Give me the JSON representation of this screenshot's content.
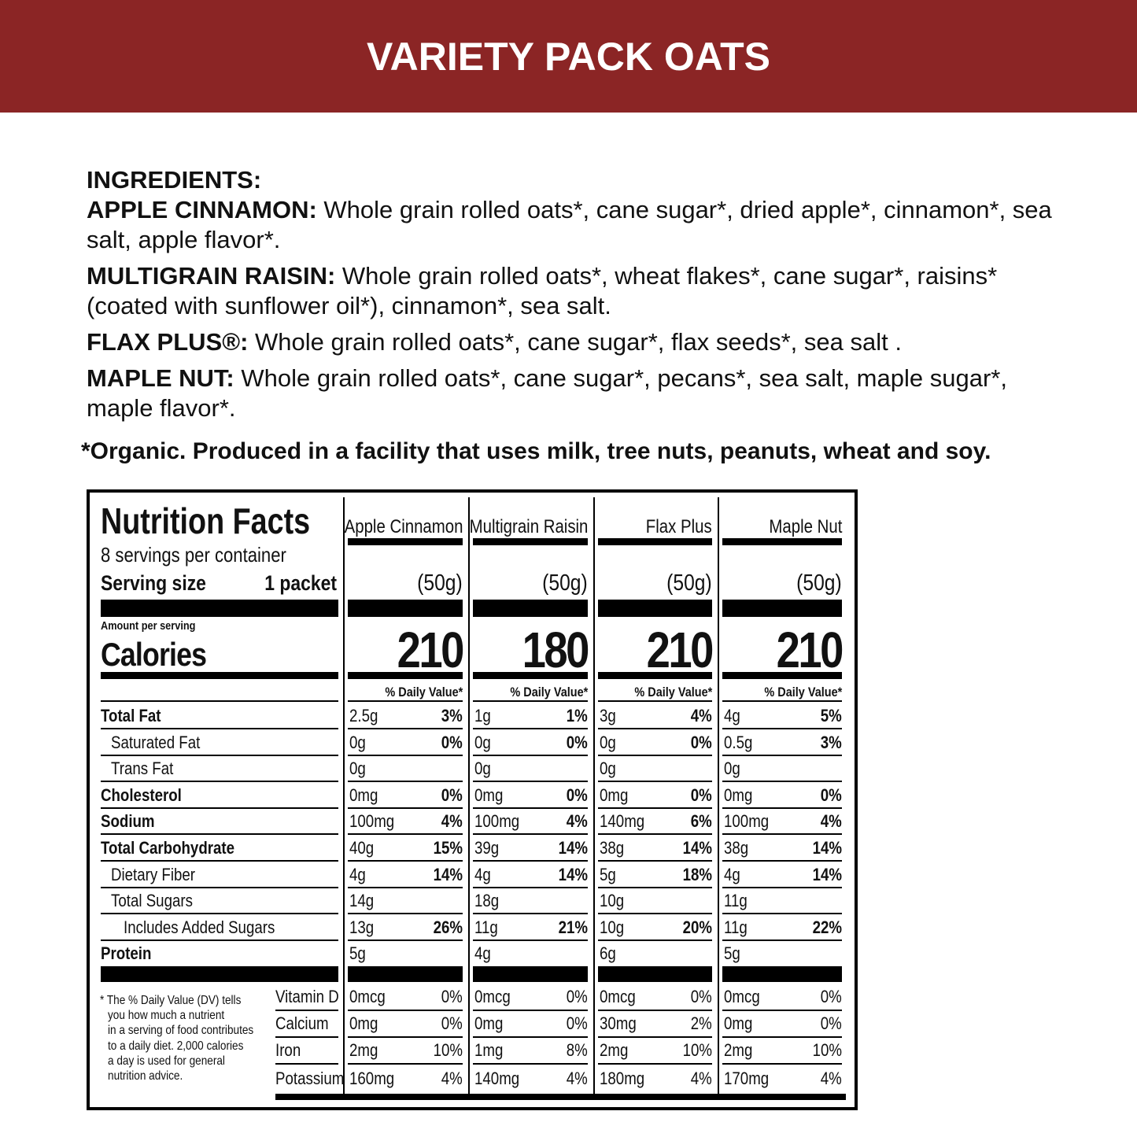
{
  "header": {
    "title": "VARIETY PACK OATS"
  },
  "ingredients": {
    "heading": "INGREDIENTS:",
    "items": [
      {
        "name": "APPLE CINNAMON:",
        "text": "Whole grain rolled oats*, cane sugar*, dried apple*, cinnamon*, sea salt, apple flavor*."
      },
      {
        "name": "MULTIGRAIN RAISIN:",
        "text": "Whole grain rolled oats*, wheat flakes*, cane sugar*, raisins* (coated with sunflower oil*), cinnamon*, sea salt."
      },
      {
        "name": "FLAX PLUS®:",
        "text": "Whole grain rolled oats*, cane sugar*, flax seeds*, sea salt ."
      },
      {
        "name": "MAPLE NUT:",
        "text": "Whole grain rolled oats*, cane sugar*, pecans*, sea salt, maple sugar*, maple flavor*."
      }
    ],
    "note": "*Organic. Produced in a facility that uses milk, tree nuts, peanuts, wheat and soy."
  },
  "nutrition": {
    "title": "Nutrition Facts",
    "servings": "8 servings per container",
    "serving_size_label": "Serving size",
    "serving_size_value": "1 packet",
    "amount_per_serving": "Amount per serving",
    "calories_label": "Calories",
    "nutrients": [
      "Total Fat",
      "Saturated Fat",
      "Trans Fat",
      "Cholesterol",
      "Sodium",
      "Total Carbohydrate",
      "Dietary Fiber",
      "Total Sugars",
      "Includes Added Sugars",
      "Protein"
    ],
    "vitamins": [
      "Vitamin D",
      "Calcium",
      "Iron",
      "Potassium"
    ],
    "footnote": [
      "* The % Daily Value (DV) tells",
      "you how much a nutrient",
      "in a serving of food contributes",
      "to a daily diet. 2,000 calories",
      "a day is used for general",
      "nutrition advice."
    ],
    "products": [
      {
        "name": "Apple Cinnamon",
        "serving": "(50g)",
        "calories": 210,
        "dv_heading": "% Daily Value*",
        "nutrients": [
          [
            "2.5g",
            "3%"
          ],
          [
            "0g",
            "0%"
          ],
          [
            "0g"
          ],
          [
            "0mg",
            "0%"
          ],
          [
            "100mg",
            "4%"
          ],
          [
            "40g",
            "15%"
          ],
          [
            "4g",
            "14%"
          ],
          [
            "14g"
          ],
          [
            "13g",
            "26%"
          ],
          [
            "5g"
          ]
        ],
        "vitamins": [
          [
            "0mcg",
            "0%"
          ],
          [
            "0mg",
            "0%"
          ],
          [
            "2mg",
            "10%"
          ],
          [
            "160mg",
            "4%"
          ]
        ]
      },
      {
        "name": "Multigrain Raisin",
        "serving": "(50g)",
        "calories": 180,
        "dv_heading": "% Daily Value*",
        "nutrients": [
          [
            "1g",
            "1%"
          ],
          [
            "0g",
            "0%"
          ],
          [
            "0g"
          ],
          [
            "0mg",
            "0%"
          ],
          [
            "100mg",
            "4%"
          ],
          [
            "39g",
            "14%"
          ],
          [
            "4g",
            "14%"
          ],
          [
            "18g"
          ],
          [
            "11g",
            "21%"
          ],
          [
            "4g"
          ]
        ],
        "vitamins": [
          [
            "0mcg",
            "0%"
          ],
          [
            "0mg",
            "0%"
          ],
          [
            "1mg",
            "8%"
          ],
          [
            "140mg",
            "4%"
          ]
        ]
      },
      {
        "name": "Flax Plus",
        "serving": "(50g)",
        "calories": 210,
        "dv_heading": "% Daily Value*",
        "nutrients": [
          [
            "3g",
            "4%"
          ],
          [
            "0g",
            "0%"
          ],
          [
            "0g"
          ],
          [
            "0mg",
            "0%"
          ],
          [
            "140mg",
            "6%"
          ],
          [
            "38g",
            "14%"
          ],
          [
            "5g",
            "18%"
          ],
          [
            "10g"
          ],
          [
            "10g",
            "20%"
          ],
          [
            "6g"
          ]
        ],
        "vitamins": [
          [
            "0mcg",
            "0%"
          ],
          [
            "30mg",
            "2%"
          ],
          [
            "2mg",
            "10%"
          ],
          [
            "180mg",
            "4%"
          ]
        ]
      },
      {
        "name": "Maple Nut",
        "serving": "(50g)",
        "calories": 210,
        "dv_heading": "% Daily Value*",
        "nutrients": [
          [
            "4g",
            "5%"
          ],
          [
            "0.5g",
            "3%"
          ],
          [
            "0g"
          ],
          [
            "0mg",
            "0%"
          ],
          [
            "100mg",
            "4%"
          ],
          [
            "38g",
            "14%"
          ],
          [
            "4g",
            "14%"
          ],
          [
            "11g"
          ],
          [
            "11g",
            "22%"
          ],
          [
            "5g"
          ]
        ],
        "vitamins": [
          [
            "0mcg",
            "0%"
          ],
          [
            "0mg",
            "0%"
          ],
          [
            "2mg",
            "10%"
          ],
          [
            "170mg",
            "4%"
          ]
        ]
      }
    ]
  }
}
